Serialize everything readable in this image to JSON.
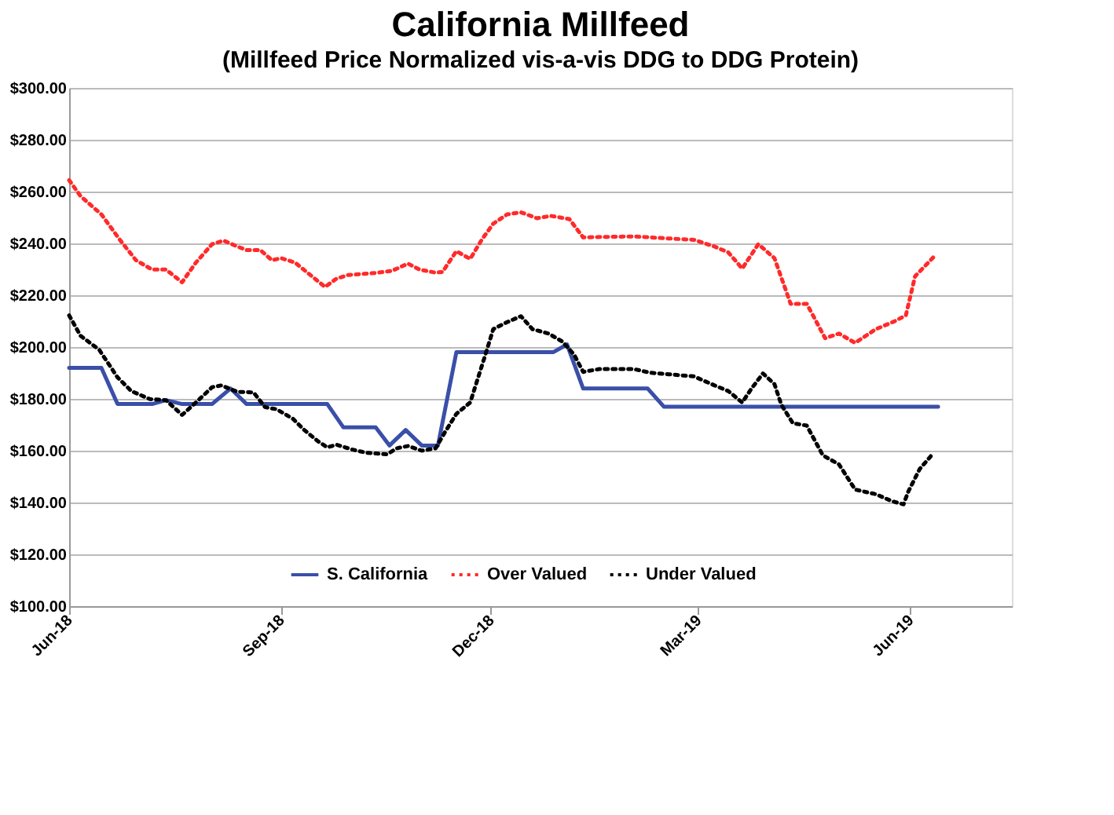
{
  "chart_data": {
    "type": "line",
    "title": "California Millfeed",
    "subtitle": "(Millfeed Price Normalized vis-a-vis DDG  to DDG Protein)",
    "xlim": [
      "2018-06-01",
      "2019-07-15"
    ],
    "xticks": [
      {
        "value": "2018-06-01",
        "label": "Jun-18"
      },
      {
        "value": "2018-09-01",
        "label": "Sep-18"
      },
      {
        "value": "2018-12-01",
        "label": "Dec-18"
      },
      {
        "value": "2019-03-01",
        "label": "Mar-19"
      },
      {
        "value": "2019-06-01",
        "label": "Jun-19"
      }
    ],
    "ylim": [
      100,
      300
    ],
    "yticks": [
      {
        "value": 100,
        "label": "$100.00"
      },
      {
        "value": 120,
        "label": "$120.00"
      },
      {
        "value": 140,
        "label": "$140.00"
      },
      {
        "value": 160,
        "label": "$160.00"
      },
      {
        "value": 180,
        "label": "$180.00"
      },
      {
        "value": 200,
        "label": "$200.00"
      },
      {
        "value": 220,
        "label": "$220.00"
      },
      {
        "value": 240,
        "label": "$240.00"
      },
      {
        "value": 260,
        "label": "$260.00"
      },
      {
        "value": 280,
        "label": "$280.00"
      },
      {
        "value": 300,
        "label": "$300.00"
      }
    ],
    "grid": "y",
    "legend": "bottom",
    "series": [
      {
        "name": "S. California",
        "color": "#3a4fa8",
        "line_style": "solid",
        "x": [
          "2018-06-01",
          "2018-06-15",
          "2018-06-22",
          "2018-07-07",
          "2018-07-13",
          "2018-07-20",
          "2018-08-02",
          "2018-08-10",
          "2018-08-17",
          "2018-09-21",
          "2018-09-28",
          "2018-10-12",
          "2018-10-18",
          "2018-10-25",
          "2018-11-01",
          "2018-11-08",
          "2018-11-16",
          "2018-12-28",
          "2019-01-03",
          "2019-01-10",
          "2019-02-07",
          "2019-02-14",
          "2019-06-13"
        ],
        "values": [
          192,
          192,
          178,
          178,
          179.5,
          178,
          178,
          184,
          178,
          178,
          169,
          169,
          162,
          168,
          162,
          162,
          198,
          198,
          201,
          184,
          184,
          177,
          177
        ]
      },
      {
        "name": "Over Valued",
        "color": "#ff2a2a",
        "line_style": "dotted",
        "x": [
          "2018-06-01",
          "2018-06-06",
          "2018-06-15",
          "2018-06-23",
          "2018-06-30",
          "2018-07-07",
          "2018-07-13",
          "2018-07-20",
          "2018-07-26",
          "2018-08-02",
          "2018-08-07",
          "2018-08-13",
          "2018-08-17",
          "2018-08-23",
          "2018-08-28",
          "2018-09-01",
          "2018-09-07",
          "2018-09-12",
          "2018-09-20",
          "2018-09-25",
          "2018-09-30",
          "2018-10-06",
          "2018-10-13",
          "2018-10-19",
          "2018-10-26",
          "2018-10-31",
          "2018-11-07",
          "2018-11-10",
          "2018-11-16",
          "2018-11-22",
          "2018-11-27",
          "2018-12-02",
          "2018-12-08",
          "2018-12-14",
          "2018-12-21",
          "2018-12-27",
          "2019-01-04",
          "2019-01-10",
          "2019-01-19",
          "2019-02-01",
          "2019-02-14",
          "2019-02-27",
          "2019-03-08",
          "2019-03-14",
          "2019-03-20",
          "2019-03-27",
          "2019-04-03",
          "2019-04-10",
          "2019-04-17",
          "2019-04-25",
          "2019-05-01",
          "2019-05-08",
          "2019-05-17",
          "2019-05-25",
          "2019-05-30",
          "2019-06-03",
          "2019-06-11"
        ],
        "values": [
          264.4,
          258.2,
          251.2,
          241.4,
          233.5,
          229.9,
          229.9,
          225,
          232.6,
          239.7,
          241.1,
          238.8,
          237.4,
          237.4,
          233.5,
          234.3,
          232.6,
          229,
          223.2,
          226.4,
          227.8,
          228.2,
          228.7,
          229.4,
          232.2,
          229.9,
          228.7,
          229,
          237,
          234,
          241.4,
          247.6,
          251.2,
          252,
          249.7,
          250.6,
          249.4,
          242.3,
          242.5,
          242.7,
          242,
          241.4,
          238.8,
          236.5,
          230.3,
          239.7,
          234.3,
          216.7,
          216.7,
          203.4,
          205.2,
          201.6,
          206.9,
          209.9,
          212.2,
          227.3,
          234.7
        ]
      },
      {
        "name": "Under Valued",
        "color": "#000000",
        "line_style": "dotted",
        "x": [
          "2018-06-01",
          "2018-06-06",
          "2018-06-14",
          "2018-06-22",
          "2018-06-28",
          "2018-07-06",
          "2018-07-13",
          "2018-07-20",
          "2018-07-26",
          "2018-08-02",
          "2018-08-06",
          "2018-08-13",
          "2018-08-20",
          "2018-08-25",
          "2018-08-30",
          "2018-09-06",
          "2018-09-11",
          "2018-09-17",
          "2018-09-21",
          "2018-09-25",
          "2018-10-02",
          "2018-10-08",
          "2018-10-17",
          "2018-10-21",
          "2018-10-26",
          "2018-11-01",
          "2018-11-07",
          "2018-11-11",
          "2018-11-16",
          "2018-11-22",
          "2018-11-28",
          "2018-12-02",
          "2018-12-08",
          "2018-12-14",
          "2018-12-19",
          "2018-12-26",
          "2019-01-01",
          "2019-01-06",
          "2019-01-10",
          "2019-01-17",
          "2019-01-26",
          "2019-02-01",
          "2019-02-08",
          "2019-02-16",
          "2019-02-27",
          "2019-03-08",
          "2019-03-14",
          "2019-03-20",
          "2019-03-24",
          "2019-03-29",
          "2019-04-03",
          "2019-04-06",
          "2019-04-11",
          "2019-04-17",
          "2019-04-24",
          "2019-05-01",
          "2019-05-08",
          "2019-05-17",
          "2019-05-24",
          "2019-05-29",
          "2019-05-31",
          "2019-06-05",
          "2019-06-11"
        ],
        "values": [
          212.2,
          204.3,
          199,
          188.3,
          183,
          179.9,
          179.5,
          173.8,
          178.6,
          184.5,
          185.2,
          182.7,
          182.5,
          176.8,
          176,
          172.4,
          168,
          163.6,
          161.3,
          162.3,
          160.4,
          159.2,
          158.6,
          160.9,
          161.8,
          160,
          160.9,
          167.1,
          174.2,
          178.6,
          195.4,
          206.9,
          209.6,
          211.9,
          206.9,
          205.2,
          202.1,
          197.2,
          190.4,
          191.5,
          191.5,
          191.5,
          190.1,
          189.5,
          188.7,
          185.2,
          183,
          178.6,
          183.9,
          189.8,
          185.7,
          177.7,
          170.6,
          169.7,
          158.2,
          154.7,
          145,
          143.2,
          140.5,
          139.3,
          144.1,
          152.9,
          159.1
        ]
      }
    ]
  }
}
